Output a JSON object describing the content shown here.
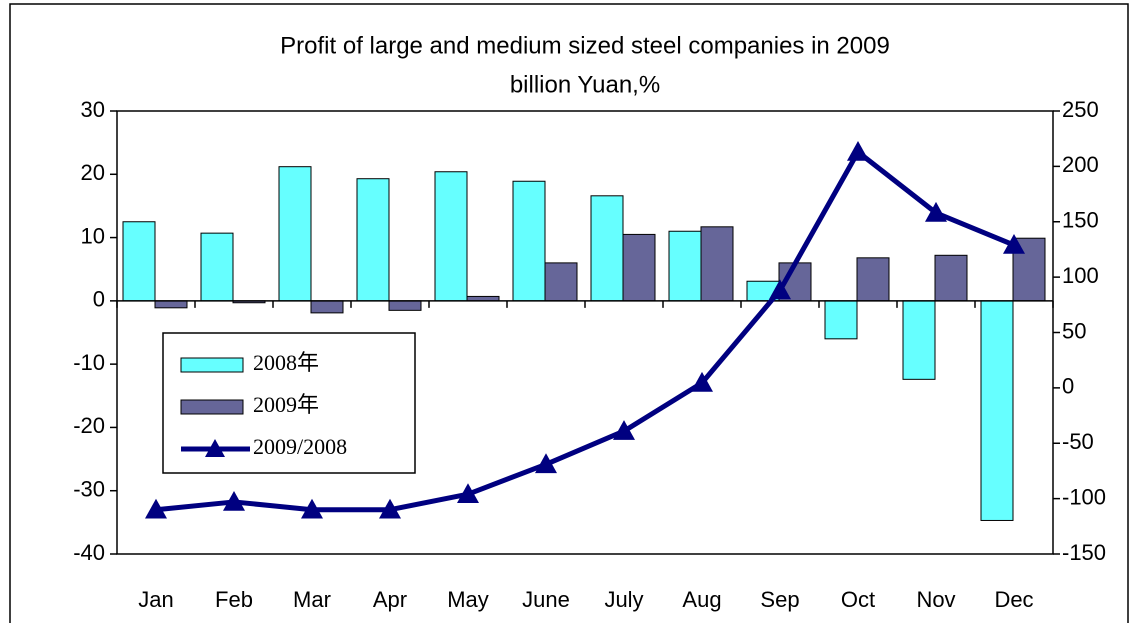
{
  "chart_data": {
    "type": "bar_line",
    "title": "Profit of large and medium sized steel companies in 2009",
    "subtitle": "billion Yuan,%",
    "categories": [
      "Jan",
      "Feb",
      "Mar",
      "Apr",
      "May",
      "June",
      "July",
      "Aug",
      "Sep",
      "Oct",
      "Nov",
      "Dec"
    ],
    "series": [
      {
        "name": "2008年",
        "type": "bar",
        "color": "#66ffff",
        "values": [
          12.5,
          10.7,
          21.2,
          19.3,
          20.4,
          18.9,
          16.6,
          11,
          3.1,
          -6,
          -12.4,
          -34.7
        ]
      },
      {
        "name": "2009年",
        "type": "bar",
        "color": "#666699",
        "values": [
          -1.1,
          -0.3,
          -1.9,
          -1.5,
          0.7,
          6,
          10.5,
          11.7,
          6,
          6.8,
          7.2,
          9.9
        ]
      },
      {
        "name": "2009/2008",
        "type": "line",
        "axis": "y2",
        "color": "#000080",
        "values": [
          -110,
          -103,
          -110,
          -110,
          -96,
          -69,
          -39,
          4.5,
          88,
          213,
          158,
          129
        ]
      }
    ],
    "ylim": [
      -40,
      30
    ],
    "yticks": [
      30,
      20,
      10,
      0,
      -10,
      -20,
      -30,
      -40
    ],
    "y2lim": [
      -150,
      250
    ],
    "y2ticks": [
      250,
      200,
      150,
      100,
      50,
      0,
      -50,
      -100,
      -150
    ]
  }
}
